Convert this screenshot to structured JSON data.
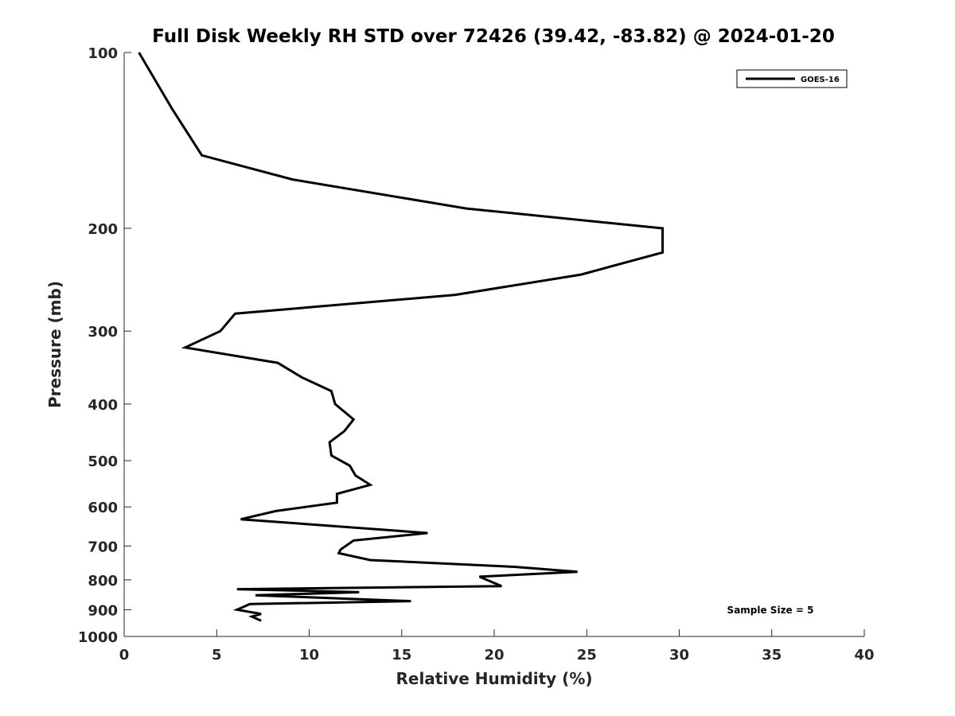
{
  "chart_data": {
    "type": "line",
    "title": "Full Disk Weekly RH STD over 72426 (39.42, -83.82) @ 2024-01-20",
    "xlabel": "Relative Humidity (%)",
    "ylabel": "Pressure (mb)",
    "xlim": [
      0,
      40
    ],
    "ylim": [
      100,
      1000
    ],
    "y_scale": "log",
    "y_reversed": true,
    "grid": false,
    "legend_position": "top-right",
    "x_ticks": [
      0,
      5,
      10,
      15,
      20,
      25,
      30,
      35,
      40
    ],
    "x_tick_labels": [
      "0",
      "5",
      "10",
      "15",
      "20",
      "25",
      "30",
      "35",
      "40"
    ],
    "y_ticks": [
      100,
      200,
      300,
      400,
      500,
      600,
      700,
      800,
      900,
      1000
    ],
    "y_tick_labels": [
      "100",
      "200",
      "300",
      "400",
      "500",
      "600",
      "700",
      "800",
      "900",
      "1000"
    ],
    "series": [
      {
        "name": "GOES-16",
        "color": "#000000",
        "x": [
          0.8,
          2.6,
          4.2,
          9.1,
          18.5,
          29.1,
          29.1,
          24.7,
          17.9,
          6.0,
          5.2,
          3.3,
          8.3,
          9.6,
          11.2,
          11.4,
          12.4,
          11.9,
          11.1,
          11.2,
          12.2,
          12.5,
          13.3,
          11.5,
          11.5,
          8.2,
          6.3,
          16.4,
          12.4,
          11.7,
          11.6,
          13.3,
          21.1,
          24.5,
          19.2,
          19.6,
          20.4,
          6.1,
          12.7,
          7.1,
          15.5,
          6.8,
          6.1,
          7.4,
          6.9,
          7.4
        ],
        "y": [
          100,
          125,
          150,
          165,
          185,
          200,
          220,
          240,
          260,
          280,
          300,
          320,
          340,
          360,
          380,
          400,
          425,
          445,
          465,
          490,
          510,
          530,
          550,
          570,
          590,
          610,
          630,
          665,
          685,
          710,
          720,
          740,
          760,
          775,
          790,
          800,
          820,
          830,
          840,
          850,
          870,
          880,
          900,
          915,
          925,
          940
        ]
      }
    ],
    "annotations": [
      {
        "text": "Sample Size = 5"
      }
    ]
  }
}
